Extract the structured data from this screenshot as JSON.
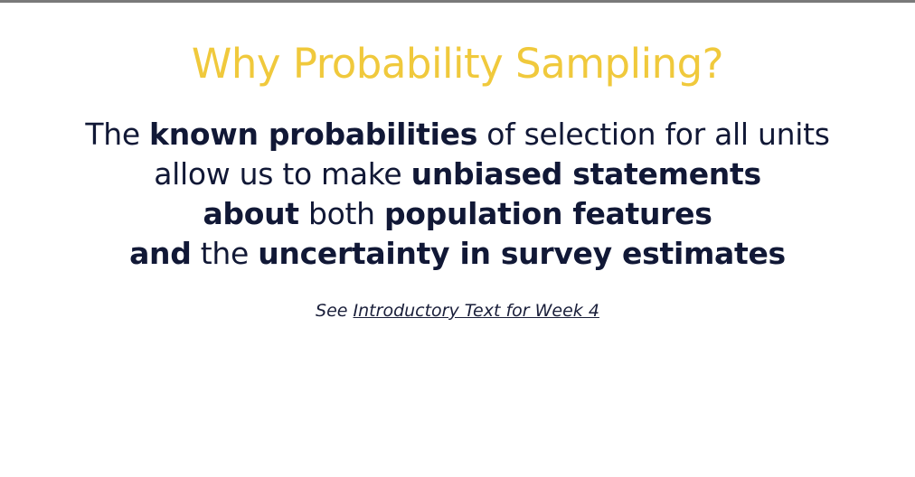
{
  "slide": {
    "title": "Why Probability Sampling?",
    "body": {
      "line1": {
        "t1": "The ",
        "b1": "known probabilities",
        "t2": " of selection for all units"
      },
      "line2": {
        "t1": "allow us to make ",
        "b1": "unbiased statements"
      },
      "line3": {
        "b1": "about",
        "t1": " both ",
        "b2": "population features"
      },
      "line4": {
        "b1": "and",
        "t1": " the ",
        "b2": "uncertainty in survey estimates"
      }
    },
    "reference": {
      "prefix": "See ",
      "link_text": "Introductory Text for Week 4"
    },
    "colors": {
      "title": "#f0c93c",
      "body_text": "#111836",
      "background": "#ffffff"
    }
  }
}
